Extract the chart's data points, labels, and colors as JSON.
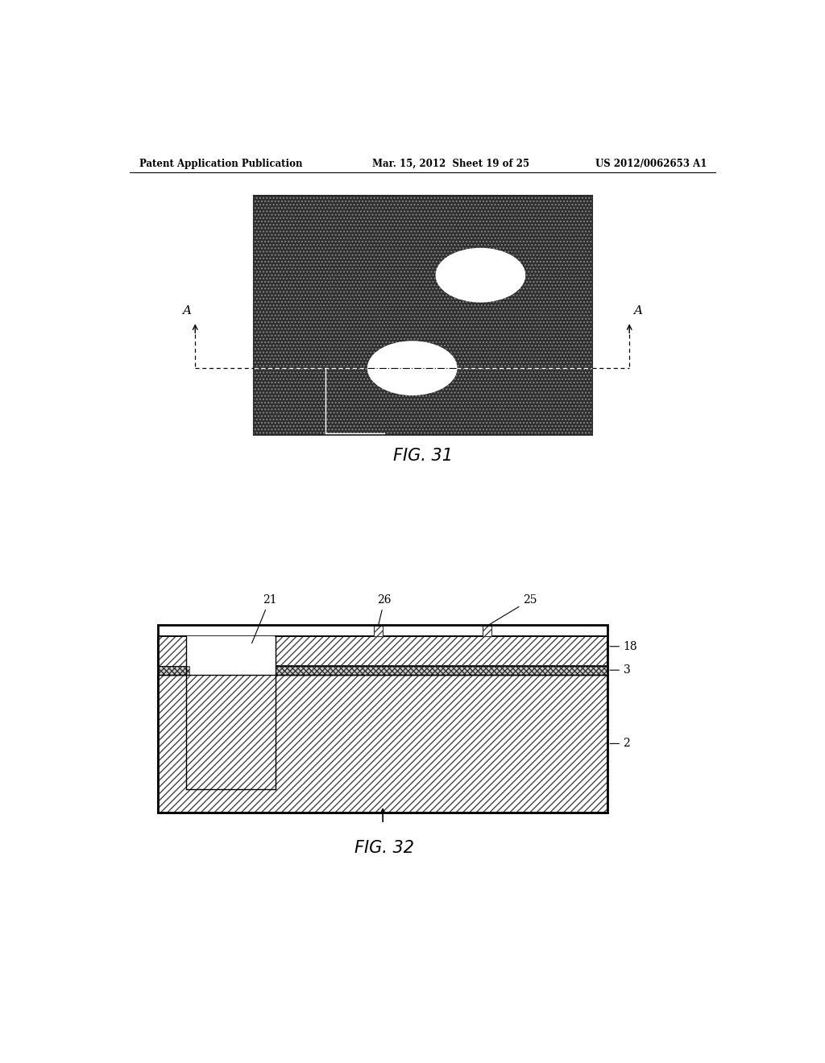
{
  "header_left": "Patent Application Publication",
  "header_mid": "Mar. 15, 2012  Sheet 19 of 25",
  "header_right": "US 2012/0062653 A1",
  "fig31_label": "FIG. 31",
  "fig32_label": "FIG. 32",
  "bg_color": "#ffffff"
}
